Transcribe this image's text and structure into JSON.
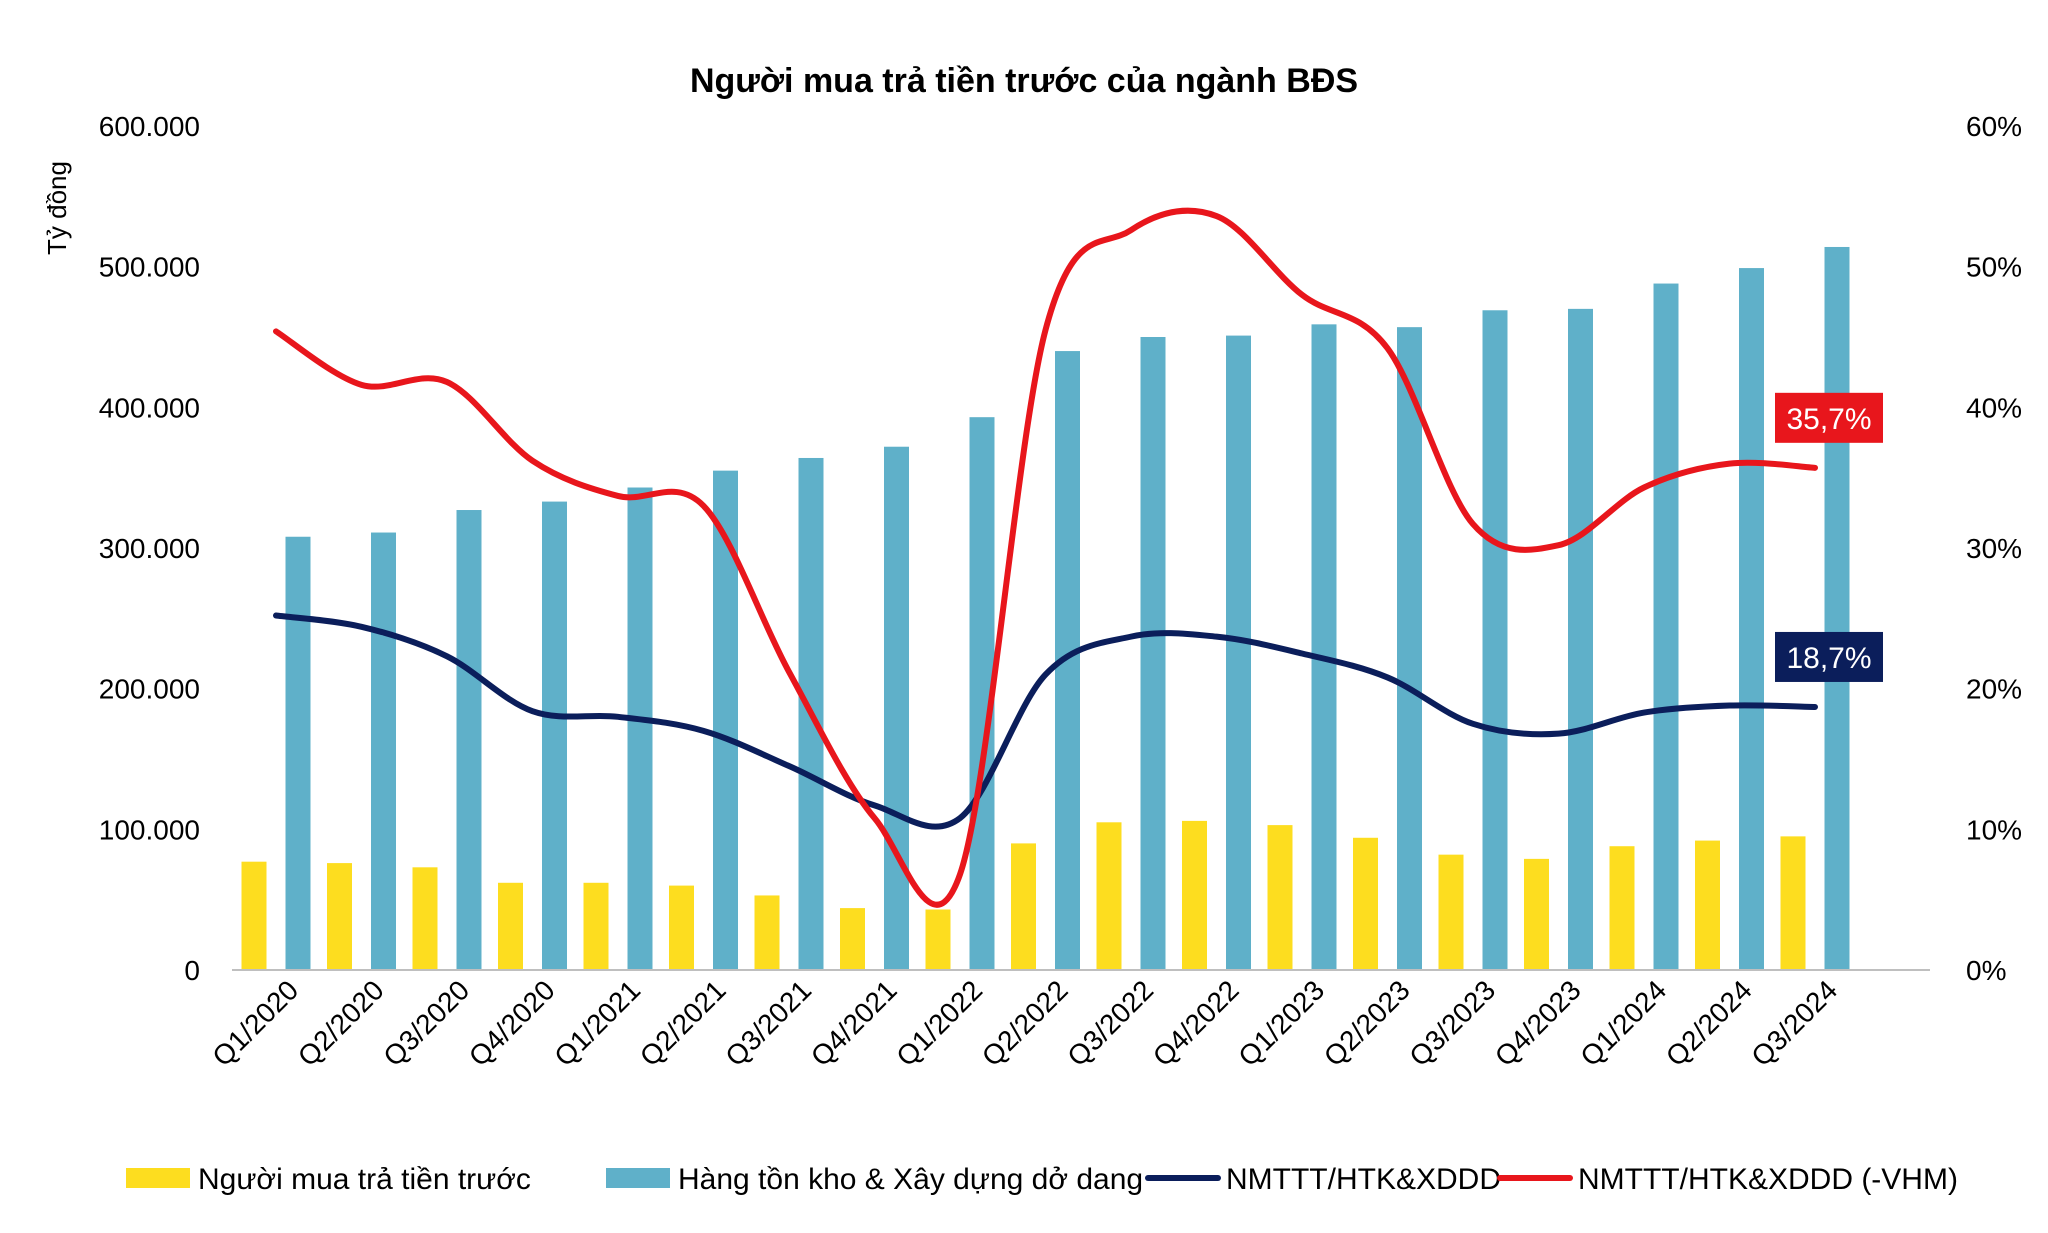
{
  "chart_data": {
    "type": "bar",
    "title": "Người mua trả tiền trước của ngành BĐS",
    "ylabel": "Tỷ đồng",
    "y2label": "",
    "ylim": [
      0,
      600000
    ],
    "y2lim": [
      0,
      0.6
    ],
    "yticks": [
      "600.000",
      "500.000",
      "400.000",
      "300.000",
      "200.000",
      "100.000",
      "0"
    ],
    "y2ticks": [
      "60%",
      "50%",
      "40%",
      "30%",
      "20%",
      "10%",
      "0%"
    ],
    "grid": false,
    "legend_position": "bottom",
    "categories": [
      "Q1/2020",
      "Q2/2020",
      "Q3/2020",
      "Q4/2020",
      "Q1/2021",
      "Q2/2021",
      "Q3/2021",
      "Q4/2021",
      "Q1/2022",
      "Q2/2022",
      "Q3/2022",
      "Q4/2022",
      "Q1/2023",
      "Q2/2023",
      "Q3/2023",
      "Q4/2023",
      "Q1/2024",
      "Q2/2024",
      "Q3/2024"
    ],
    "series": [
      {
        "name": "Người mua trả tiền trước",
        "type": "bar",
        "axis": "left",
        "color": "#FDDD1F",
        "values": [
          77000,
          76000,
          73000,
          62000,
          62000,
          60000,
          53000,
          44000,
          43000,
          90000,
          105000,
          106000,
          103000,
          94000,
          82000,
          79000,
          88000,
          92000,
          95000
        ]
      },
      {
        "name": "Hàng tồn kho & Xây dựng dở dang",
        "type": "bar",
        "axis": "left",
        "color": "#5FB0C9",
        "values": [
          308000,
          311000,
          327000,
          333000,
          343000,
          355000,
          364000,
          372000,
          393000,
          440000,
          450000,
          451000,
          459000,
          457000,
          469000,
          470000,
          488000,
          499000,
          514000
        ]
      },
      {
        "name": "NMTTT/HTK&XDDD",
        "type": "line",
        "axis": "right",
        "color": "#0B1E5B",
        "values": [
          0.252,
          0.244,
          0.223,
          0.184,
          0.18,
          0.17,
          0.145,
          0.117,
          0.108,
          0.21,
          0.237,
          0.237,
          0.225,
          0.208,
          0.175,
          0.168,
          0.183,
          0.188,
          0.187
        ],
        "end_label": "18,7%"
      },
      {
        "name": "NMTTT/HTK&XDDD (-VHM)",
        "type": "line",
        "axis": "right",
        "color": "#E8161C",
        "values": [
          0.454,
          0.416,
          0.418,
          0.362,
          0.337,
          0.33,
          0.212,
          0.108,
          0.068,
          0.455,
          0.526,
          0.536,
          0.48,
          0.442,
          0.317,
          0.302,
          0.343,
          0.36,
          0.357
        ],
        "end_label": "35,7%"
      }
    ]
  }
}
